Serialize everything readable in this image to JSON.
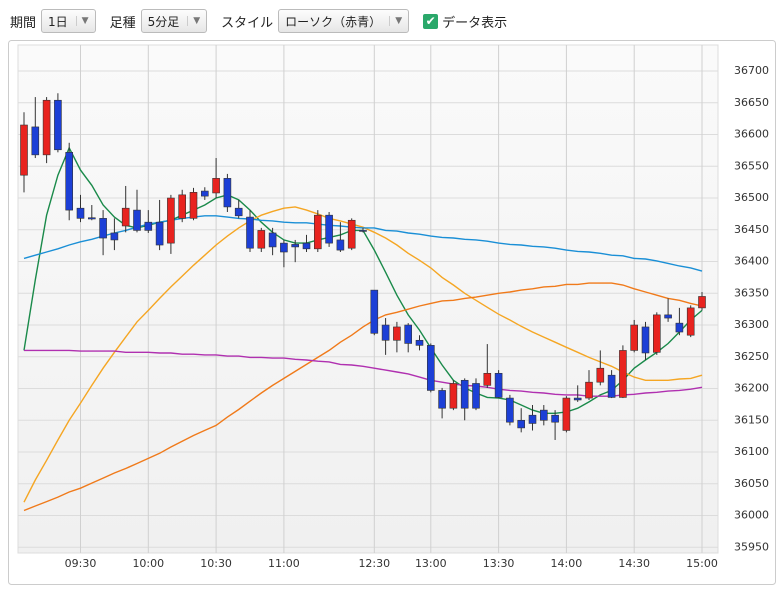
{
  "toolbar": {
    "period_label": "期間",
    "period": "1日",
    "bar_label": "足種",
    "bar": "5分足",
    "style_label": "スタイル",
    "style": "ローソク（赤青）",
    "data_display": "データ表示",
    "data_display_checked": true
  },
  "chart_data": {
    "type": "candlestick",
    "categories": [
      null,
      null,
      null,
      null,
      null,
      "09:30",
      null,
      null,
      null,
      null,
      null,
      "10:00",
      null,
      null,
      null,
      null,
      null,
      "10:30",
      null,
      null,
      null,
      null,
      null,
      "11:00",
      null,
      null,
      null,
      null,
      null,
      null,
      null,
      "12:30",
      null,
      null,
      null,
      null,
      "13:00",
      null,
      null,
      null,
      null,
      null,
      "13:30",
      null,
      null,
      null,
      null,
      null,
      "14:00",
      null,
      null,
      null,
      null,
      null,
      "14:30",
      null,
      null,
      null,
      null,
      null,
      "15:00"
    ],
    "open": [
      36536,
      36612,
      36568,
      36654,
      36572,
      36484,
      36469,
      36468,
      36445,
      36456,
      36481,
      36462,
      36462,
      36429,
      36468,
      36468,
      36511,
      36508,
      36531,
      36484,
      36470,
      36421,
      36445,
      36429,
      36427,
      36429,
      36420,
      36473,
      36434,
      36421,
      36449,
      36355,
      36300,
      36276,
      36300,
      36276,
      36268,
      36197,
      36169,
      36213,
      36208,
      36205,
      36224,
      36185,
      36150,
      36158,
      36166,
      36158,
      36134,
      36185,
      36185,
      36210,
      36221,
      36186,
      36260,
      36297,
      36257,
      36316,
      36303,
      36284,
      36327
    ],
    "high": [
      36635,
      36659,
      36659,
      36665,
      36587,
      36505,
      36489,
      36481,
      36468,
      36519,
      36513,
      36481,
      36497,
      36505,
      36513,
      36516,
      36517,
      36563,
      36538,
      36497,
      36481,
      36453,
      36453,
      36434,
      36434,
      36442,
      36481,
      36478,
      36462,
      36468,
      36453,
      36355,
      36311,
      36305,
      36303,
      36284,
      36271,
      36201,
      36213,
      36216,
      36216,
      36270,
      36229,
      36190,
      36169,
      36174,
      36174,
      36166,
      36188,
      36205,
      36229,
      36260,
      36229,
      36268,
      36308,
      36305,
      36320,
      36342,
      36327,
      36331,
      36352
    ],
    "low": [
      36509,
      36563,
      36555,
      36572,
      36465,
      36462,
      36465,
      36410,
      36418,
      36446,
      36446,
      36445,
      36418,
      36412,
      36462,
      36465,
      36497,
      36500,
      36478,
      36468,
      36415,
      36415,
      36410,
      36391,
      36399,
      36415,
      36415,
      36423,
      36415,
      36418,
      36446,
      36284,
      36253,
      36257,
      36257,
      36260,
      36194,
      36153,
      36166,
      36150,
      36166,
      36201,
      36185,
      36142,
      36131,
      36134,
      36142,
      36119,
      36131,
      36179,
      36182,
      36205,
      36185,
      36185,
      36257,
      36245,
      36253,
      36305,
      36284,
      36281,
      36323
    ],
    "close": [
      36615,
      36568,
      36654,
      36576,
      36481,
      36468,
      36467,
      36437,
      36434,
      36484,
      36449,
      36449,
      36426,
      36500,
      36505,
      36509,
      36503,
      36531,
      36486,
      36472,
      36421,
      36449,
      36423,
      36415,
      36423,
      36420,
      36473,
      36429,
      36418,
      36465,
      36449,
      36287,
      36276,
      36297,
      36271,
      36268,
      36197,
      36169,
      36208,
      36169,
      36169,
      36224,
      36186,
      36147,
      36138,
      36145,
      36150,
      36147,
      36185,
      36182,
      36210,
      36232,
      36186,
      36260,
      36300,
      36256,
      36316,
      36311,
      36289,
      36327,
      36345
    ],
    "up_color": "#e8231f",
    "down_color": "#1c3fd6",
    "lines": [
      {
        "color": "#1a8a4a",
        "values": [
          36260,
          36371,
          36473,
          36536,
          36579,
          36544,
          36520,
          36489,
          36470,
          36457,
          36453,
          36457,
          36462,
          36465,
          36473,
          36481,
          36489,
          36500,
          36505,
          36497,
          36481,
          36462,
          36446,
          36434,
          36429,
          36429,
          36434,
          36438,
          36442,
          36449,
          36449,
          36418,
          36383,
          36347,
          36316,
          36292,
          36264,
          36237,
          36213,
          36201,
          36193,
          36186,
          36185,
          36182,
          36174,
          36166,
          36161,
          36161,
          36163,
          36169,
          36179,
          36190,
          36197,
          36213,
          36232,
          36245,
          36257,
          36271,
          36289,
          36308,
          36323
        ]
      },
      {
        "color": "#f5a623",
        "values": [
          36021,
          36056,
          36087,
          36119,
          36150,
          36177,
          36205,
          36232,
          36257,
          36281,
          36305,
          36323,
          36342,
          36360,
          36377,
          36394,
          36410,
          36426,
          36440,
          36453,
          36464,
          36473,
          36479,
          36484,
          36486,
          36481,
          36475,
          36468,
          36464,
          36459,
          36454,
          36446,
          36437,
          36426,
          36413,
          36402,
          36390,
          36375,
          36363,
          36350,
          36339,
          36328,
          36317,
          36308,
          36298,
          36289,
          36281,
          36273,
          36265,
          36257,
          36249,
          36242,
          36235,
          36226,
          36218,
          36213,
          36213,
          36213,
          36215,
          36216,
          36221
        ]
      },
      {
        "color": "#f07a1a",
        "values": [
          36008,
          36015,
          36022,
          36029,
          36037,
          36043,
          36051,
          36059,
          36067,
          36074,
          36082,
          36090,
          36098,
          36108,
          36117,
          36126,
          36134,
          36142,
          36155,
          36167,
          36180,
          36193,
          36205,
          36216,
          36227,
          36238,
          36249,
          36260,
          36273,
          36284,
          36297,
          36308,
          36316,
          36320,
          36325,
          36330,
          36334,
          36338,
          36339,
          36342,
          36344,
          36347,
          36350,
          36352,
          36355,
          36357,
          36360,
          36361,
          36364,
          36364,
          36366,
          36366,
          36366,
          36363,
          36357,
          36352,
          36347,
          36342,
          36339,
          36334,
          36330
        ]
      },
      {
        "color": "#1a8fd6",
        "values": [
          36405,
          36410,
          36415,
          36420,
          36426,
          36431,
          36435,
          36440,
          36445,
          36449,
          36454,
          36459,
          36462,
          36465,
          36468,
          36470,
          36472,
          36472,
          36470,
          36468,
          36467,
          36465,
          36464,
          36462,
          36461,
          36461,
          36459,
          36457,
          36456,
          36454,
          36453,
          36453,
          36449,
          36448,
          36445,
          36443,
          36440,
          36438,
          36437,
          36435,
          36434,
          36432,
          36429,
          36427,
          36426,
          36424,
          36423,
          36421,
          36418,
          36416,
          36415,
          36413,
          36410,
          36409,
          36405,
          36404,
          36401,
          36397,
          36393,
          36390,
          36385
        ]
      },
      {
        "color": "#b030b0",
        "values": [
          36260,
          36260,
          36260,
          36260,
          36260,
          36259,
          36259,
          36259,
          36259,
          36257,
          36257,
          36257,
          36256,
          36256,
          36254,
          36254,
          36253,
          36253,
          36251,
          36251,
          36249,
          36249,
          36248,
          36248,
          36246,
          36245,
          36243,
          36242,
          36238,
          36237,
          36235,
          36232,
          36229,
          36226,
          36223,
          36218,
          36213,
          36210,
          36207,
          36205,
          36204,
          36202,
          36199,
          36197,
          36196,
          36194,
          36193,
          36191,
          36190,
          36190,
          36188,
          36188,
          36188,
          36190,
          36191,
          36193,
          36194,
          36196,
          36197,
          36199,
          36202
        ]
      }
    ],
    "ylim": [
      35941,
      36741
    ],
    "yticks": [
      35950,
      36000,
      36050,
      36100,
      36150,
      36200,
      36250,
      36300,
      36350,
      36400,
      36450,
      36500,
      36550,
      36600,
      36650,
      36700
    ],
    "grid": true
  }
}
